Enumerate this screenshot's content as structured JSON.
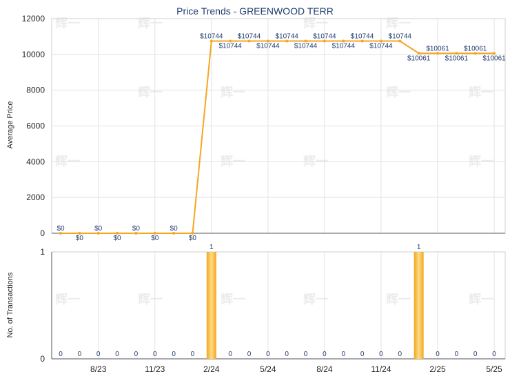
{
  "chart_data": [
    {
      "type": "line",
      "title": "Price Trends - GREENWOOD TERR",
      "ylabel": "Average Price",
      "ylim": [
        0,
        12000
      ],
      "yticks": [
        "0",
        "2000",
        "4000",
        "6000",
        "8000",
        "10000",
        "12000"
      ],
      "color": "#f5a623",
      "x": [
        "2023-06",
        "2023-07",
        "2023-08",
        "2023-09",
        "2023-10",
        "2023-11",
        "2023-12",
        "2024-01",
        "2024-02",
        "2024-03",
        "2024-04",
        "2024-05",
        "2024-06",
        "2024-07",
        "2024-08",
        "2024-09",
        "2024-10",
        "2024-11",
        "2024-12",
        "2025-01",
        "2025-02",
        "2025-03",
        "2025-04",
        "2025-05"
      ],
      "values": [
        0,
        0,
        0,
        0,
        0,
        0,
        0,
        0,
        10744,
        10744,
        10744,
        10744,
        10744,
        10744,
        10744,
        10744,
        10744,
        10744,
        10744,
        10061,
        10061,
        10061,
        10061,
        10061
      ],
      "labels": [
        "$0",
        "$0",
        "$0",
        "$0",
        "$0",
        "$0",
        "$0",
        "$0",
        "$10744",
        "$10744",
        "$10744",
        "$10744",
        "$10744",
        "$10744",
        "$10744",
        "$10744",
        "$10744",
        "$10744",
        "$10744",
        "$10061",
        "$10061",
        "$10061",
        "$10061",
        "$10061"
      ]
    },
    {
      "type": "bar",
      "ylabel": "No. of Transactions",
      "ylim": [
        0,
        1
      ],
      "yticks": [
        "0",
        "1"
      ],
      "color": "#f5a623",
      "x": [
        "2023-06",
        "2023-07",
        "2023-08",
        "2023-09",
        "2023-10",
        "2023-11",
        "2023-12",
        "2024-01",
        "2024-02",
        "2024-03",
        "2024-04",
        "2024-05",
        "2024-06",
        "2024-07",
        "2024-08",
        "2024-09",
        "2024-10",
        "2024-11",
        "2024-12",
        "2025-01",
        "2025-02",
        "2025-03",
        "2025-04",
        "2025-05"
      ],
      "values": [
        0,
        0,
        0,
        0,
        0,
        0,
        0,
        0,
        1,
        0,
        0,
        0,
        0,
        0,
        0,
        0,
        0,
        0,
        0,
        1,
        0,
        0,
        0,
        0
      ],
      "xticks": [
        "8/23",
        "11/23",
        "2/24",
        "5/24",
        "8/24",
        "11/24",
        "2/25",
        "5/25"
      ]
    }
  ],
  "watermark": "辉一"
}
